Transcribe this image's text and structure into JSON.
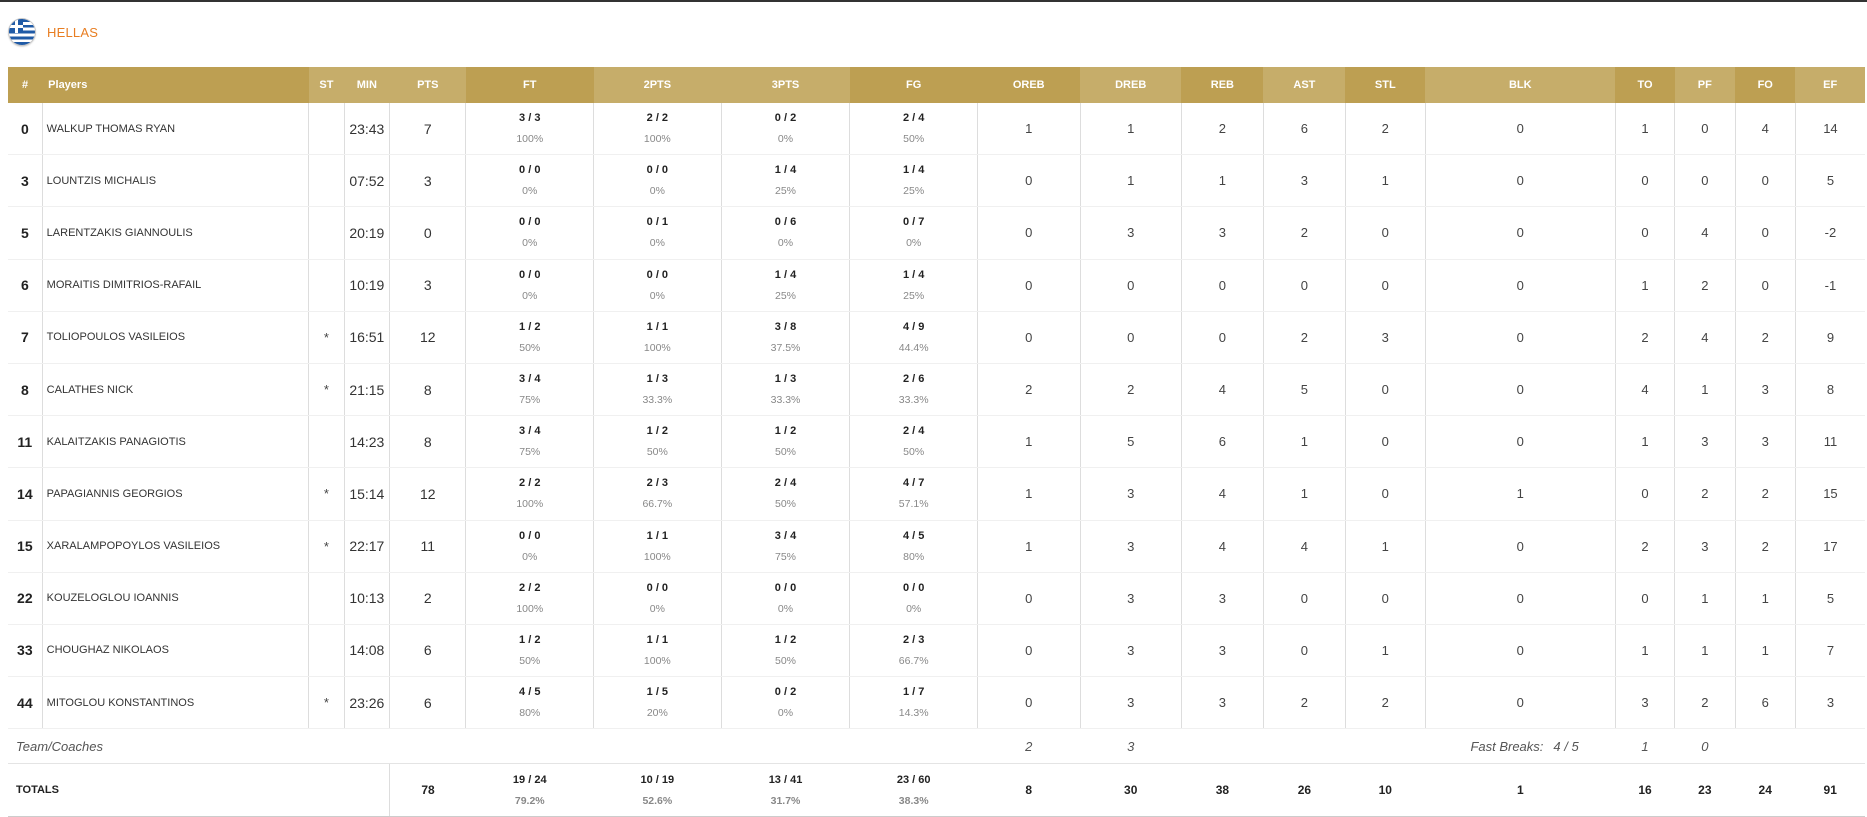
{
  "team": {
    "name": "HELLAS",
    "flag_icon": "greece-flag-icon"
  },
  "colors": {
    "header_dark": "#bd9f52",
    "header_light": "#c6ad6a",
    "team_name": "#e87e22"
  },
  "columns": [
    "#",
    "Players",
    "ST",
    "MIN",
    "PTS",
    "FT",
    "2PTS",
    "3PTS",
    "FG",
    "OREB",
    "DREB",
    "REB",
    "AST",
    "STL",
    "BLK",
    "TO",
    "PF",
    "FO",
    "EF"
  ],
  "players": [
    {
      "num": "0",
      "name": "WALKUP THOMAS RYAN",
      "st": "",
      "min": "23:43",
      "pts": "7",
      "ft": "3 / 3",
      "ft_pct": "100%",
      "p2": "2 / 2",
      "p2_pct": "100%",
      "p3": "0 / 2",
      "p3_pct": "0%",
      "fg": "2 / 4",
      "fg_pct": "50%",
      "oreb": "1",
      "dreb": "1",
      "reb": "2",
      "ast": "6",
      "stl": "2",
      "blk": "0",
      "to": "1",
      "pf": "0",
      "fo": "4",
      "ef": "14"
    },
    {
      "num": "3",
      "name": "LOUNTZIS MICHALIS",
      "st": "",
      "min": "07:52",
      "pts": "3",
      "ft": "0 / 0",
      "ft_pct": "0%",
      "p2": "0 / 0",
      "p2_pct": "0%",
      "p3": "1 / 4",
      "p3_pct": "25%",
      "fg": "1 / 4",
      "fg_pct": "25%",
      "oreb": "0",
      "dreb": "1",
      "reb": "1",
      "ast": "3",
      "stl": "1",
      "blk": "0",
      "to": "0",
      "pf": "0",
      "fo": "0",
      "ef": "5"
    },
    {
      "num": "5",
      "name": "LARENTZAKIS GIANNOULIS",
      "st": "",
      "min": "20:19",
      "pts": "0",
      "ft": "0 / 0",
      "ft_pct": "0%",
      "p2": "0 / 1",
      "p2_pct": "0%",
      "p3": "0 / 6",
      "p3_pct": "0%",
      "fg": "0 / 7",
      "fg_pct": "0%",
      "oreb": "0",
      "dreb": "3",
      "reb": "3",
      "ast": "2",
      "stl": "0",
      "blk": "0",
      "to": "0",
      "pf": "4",
      "fo": "0",
      "ef": "-2"
    },
    {
      "num": "6",
      "name": "MORAITIS DIMITRIOS-RAFAIL",
      "st": "",
      "min": "10:19",
      "pts": "3",
      "ft": "0 / 0",
      "ft_pct": "0%",
      "p2": "0 / 0",
      "p2_pct": "0%",
      "p3": "1 / 4",
      "p3_pct": "25%",
      "fg": "1 / 4",
      "fg_pct": "25%",
      "oreb": "0",
      "dreb": "0",
      "reb": "0",
      "ast": "0",
      "stl": "0",
      "blk": "0",
      "to": "1",
      "pf": "2",
      "fo": "0",
      "ef": "-1"
    },
    {
      "num": "7",
      "name": "TOLIOPOULOS VASILEIOS",
      "st": "*",
      "min": "16:51",
      "pts": "12",
      "ft": "1 / 2",
      "ft_pct": "50%",
      "p2": "1 / 1",
      "p2_pct": "100%",
      "p3": "3 / 8",
      "p3_pct": "37.5%",
      "fg": "4 / 9",
      "fg_pct": "44.4%",
      "oreb": "0",
      "dreb": "0",
      "reb": "0",
      "ast": "2",
      "stl": "3",
      "blk": "0",
      "to": "2",
      "pf": "4",
      "fo": "2",
      "ef": "9"
    },
    {
      "num": "8",
      "name": "CALATHES NICK",
      "st": "*",
      "min": "21:15",
      "pts": "8",
      "ft": "3 / 4",
      "ft_pct": "75%",
      "p2": "1 / 3",
      "p2_pct": "33.3%",
      "p3": "1 / 3",
      "p3_pct": "33.3%",
      "fg": "2 / 6",
      "fg_pct": "33.3%",
      "oreb": "2",
      "dreb": "2",
      "reb": "4",
      "ast": "5",
      "stl": "0",
      "blk": "0",
      "to": "4",
      "pf": "1",
      "fo": "3",
      "ef": "8"
    },
    {
      "num": "11",
      "name": "KALAITZAKIS PANAGIOTIS",
      "st": "",
      "min": "14:23",
      "pts": "8",
      "ft": "3 / 4",
      "ft_pct": "75%",
      "p2": "1 / 2",
      "p2_pct": "50%",
      "p3": "1 / 2",
      "p3_pct": "50%",
      "fg": "2 / 4",
      "fg_pct": "50%",
      "oreb": "1",
      "dreb": "5",
      "reb": "6",
      "ast": "1",
      "stl": "0",
      "blk": "0",
      "to": "1",
      "pf": "3",
      "fo": "3",
      "ef": "11"
    },
    {
      "num": "14",
      "name": "PAPAGIANNIS GEORGIOS",
      "st": "*",
      "min": "15:14",
      "pts": "12",
      "ft": "2 / 2",
      "ft_pct": "100%",
      "p2": "2 / 3",
      "p2_pct": "66.7%",
      "p3": "2 / 4",
      "p3_pct": "50%",
      "fg": "4 / 7",
      "fg_pct": "57.1%",
      "oreb": "1",
      "dreb": "3",
      "reb": "4",
      "ast": "1",
      "stl": "0",
      "blk": "1",
      "to": "0",
      "pf": "2",
      "fo": "2",
      "ef": "15"
    },
    {
      "num": "15",
      "name": "XARALAMPOPOYLOS VASILEIOS",
      "st": "*",
      "min": "22:17",
      "pts": "11",
      "ft": "0 / 0",
      "ft_pct": "0%",
      "p2": "1 / 1",
      "p2_pct": "100%",
      "p3": "3 / 4",
      "p3_pct": "75%",
      "fg": "4 / 5",
      "fg_pct": "80%",
      "oreb": "1",
      "dreb": "3",
      "reb": "4",
      "ast": "4",
      "stl": "1",
      "blk": "0",
      "to": "2",
      "pf": "3",
      "fo": "2",
      "ef": "17"
    },
    {
      "num": "22",
      "name": "KOUZELOGLOU IOANNIS",
      "st": "",
      "min": "10:13",
      "pts": "2",
      "ft": "2 / 2",
      "ft_pct": "100%",
      "p2": "0 / 0",
      "p2_pct": "0%",
      "p3": "0 / 0",
      "p3_pct": "0%",
      "fg": "0 / 0",
      "fg_pct": "0%",
      "oreb": "0",
      "dreb": "3",
      "reb": "3",
      "ast": "0",
      "stl": "0",
      "blk": "0",
      "to": "0",
      "pf": "1",
      "fo": "1",
      "ef": "5"
    },
    {
      "num": "33",
      "name": "CHOUGHAZ NIKOLAOS",
      "st": "",
      "min": "14:08",
      "pts": "6",
      "ft": "1 / 2",
      "ft_pct": "50%",
      "p2": "1 / 1",
      "p2_pct": "100%",
      "p3": "1 / 2",
      "p3_pct": "50%",
      "fg": "2 / 3",
      "fg_pct": "66.7%",
      "oreb": "0",
      "dreb": "3",
      "reb": "3",
      "ast": "0",
      "stl": "1",
      "blk": "0",
      "to": "1",
      "pf": "1",
      "fo": "1",
      "ef": "7"
    },
    {
      "num": "44",
      "name": "MITOGLOU KONSTANTINOS",
      "st": "*",
      "min": "23:26",
      "pts": "6",
      "ft": "4 / 5",
      "ft_pct": "80%",
      "p2": "1 / 5",
      "p2_pct": "20%",
      "p3": "0 / 2",
      "p3_pct": "0%",
      "fg": "1 / 7",
      "fg_pct": "14.3%",
      "oreb": "0",
      "dreb": "3",
      "reb": "3",
      "ast": "2",
      "stl": "2",
      "blk": "0",
      "to": "3",
      "pf": "2",
      "fo": "6",
      "ef": "3"
    }
  ],
  "team_row": {
    "label": "Team/Coaches",
    "oreb": "2",
    "dreb": "3",
    "fast_breaks_label": "Fast Breaks:",
    "fast_breaks_value": "4 / 5",
    "to": "1",
    "pf": "0"
  },
  "totals": {
    "label": "TOTALS",
    "pts": "78",
    "ft": "19 / 24",
    "ft_pct": "79.2%",
    "p2": "10 / 19",
    "p2_pct": "52.6%",
    "p3": "13 / 41",
    "p3_pct": "31.7%",
    "fg": "23 / 60",
    "fg_pct": "38.3%",
    "oreb": "8",
    "dreb": "30",
    "reb": "38",
    "ast": "26",
    "stl": "10",
    "blk": "1",
    "to": "16",
    "pf": "23",
    "fo": "24",
    "ef": "91"
  }
}
